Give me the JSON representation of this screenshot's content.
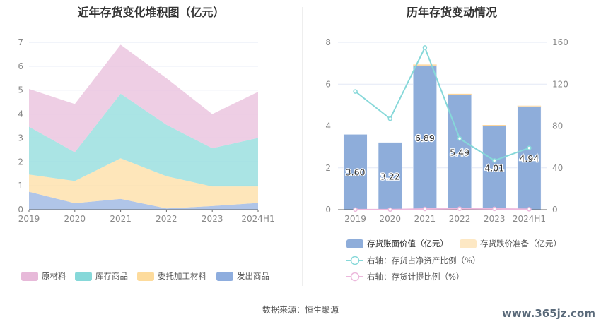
{
  "chart_data": [
    {
      "type": "area",
      "title": "近年存货变化堆积图（亿元）",
      "categories": [
        "2019",
        "2020",
        "2021",
        "2022",
        "2023",
        "2024H1"
      ],
      "ylim": [
        0,
        7
      ],
      "yticks": [
        0,
        1,
        2,
        3,
        4,
        5,
        6,
        7
      ],
      "stacked": true,
      "legend_position": "bottom",
      "series": [
        {
          "name": "发出商品",
          "color": "#8eadde",
          "values": [
            0.75,
            0.27,
            0.45,
            0.05,
            0.15,
            0.28
          ]
        },
        {
          "name": "委托加工材料",
          "color": "#fddb9c",
          "values": [
            0.72,
            0.93,
            1.7,
            1.35,
            0.82,
            0.69
          ]
        },
        {
          "name": "库存商品",
          "color": "#86d8d9",
          "values": [
            2.0,
            1.2,
            2.7,
            2.15,
            1.6,
            2.03
          ]
        },
        {
          "name": "原材料",
          "color": "#e7b9d9",
          "values": [
            1.58,
            2.02,
            2.05,
            1.95,
            1.43,
            1.93
          ]
        }
      ]
    },
    {
      "type": "bar+line",
      "title": "历年存货变动情况",
      "categories": [
        "2019",
        "2020",
        "2021",
        "2022",
        "2023",
        "2024H1"
      ],
      "ylim": [
        0,
        8
      ],
      "yticks": [
        0,
        2,
        4,
        6,
        8
      ],
      "y2lim": [
        0,
        160
      ],
      "y2ticks": [
        0,
        40,
        80,
        120,
        160
      ],
      "legend_position": "bottom",
      "bars": [
        {
          "name": "存货账面价值（亿元）",
          "color": "#8eadda",
          "values": [
            3.6,
            3.22,
            6.89,
            5.49,
            4.01,
            4.94
          ],
          "labels": [
            "3.60",
            "3.22",
            "6.89",
            "5.49",
            "4.01",
            "4.94"
          ]
        },
        {
          "name": "存货跌价准备（亿元）",
          "color": "#fde8c4",
          "values": [
            0,
            0,
            0.05,
            0.05,
            0.04,
            0.03
          ]
        }
      ],
      "lines": [
        {
          "name": "右轴：存货占净资产比例（%）",
          "color": "#86d8d9",
          "values": [
            113,
            87,
            155,
            68,
            47,
            59
          ]
        },
        {
          "name": "右轴：存货计提比例（%）",
          "color": "#ecb8dc",
          "values": [
            0.1,
            0.1,
            0.7,
            0.9,
            0.8,
            0.4
          ]
        }
      ]
    }
  ],
  "footer": "数据来源：恒生聚源",
  "watermark": "www.365jz.com"
}
